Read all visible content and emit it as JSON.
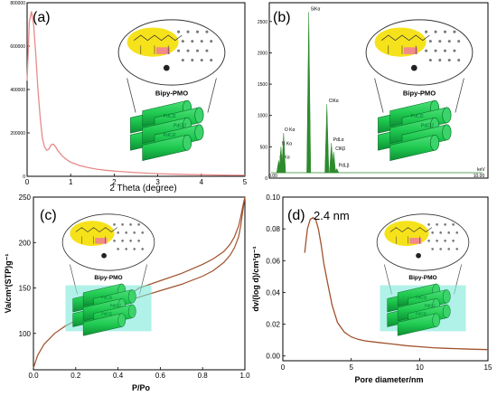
{
  "chart_data": [
    {
      "panel": "(a)",
      "type": "line",
      "xlabel": "2 Theta (degree)",
      "ylabel": "",
      "xlim": [
        0,
        5
      ],
      "ylim": [
        0,
        800000
      ],
      "xticks": [
        "0",
        "1",
        "2",
        "3",
        "4",
        "5"
      ],
      "yticks": [
        "0",
        "200000",
        "400000",
        "600000",
        "800000"
      ],
      "line_color": "#e88a8a",
      "inset_label": "Bipy-PMO",
      "inset_chem": [
        "PdCl2",
        "PdCl2",
        "PdCl2"
      ],
      "series": [
        {
          "x": [
            0.0,
            0.05,
            0.1,
            0.15,
            0.2,
            0.25,
            0.3,
            0.35,
            0.4,
            0.45,
            0.5,
            0.55,
            0.6,
            0.65,
            0.7,
            0.8,
            0.9,
            1.0,
            1.2,
            1.4,
            1.6,
            1.8,
            2.0,
            2.5,
            3.0,
            3.5,
            4.0,
            4.5,
            5.0
          ],
          "y": [
            440000,
            710000,
            760000,
            700000,
            560000,
            400000,
            270000,
            175000,
            135000,
            120000,
            125000,
            145000,
            148000,
            138000,
            120000,
            95000,
            78000,
            65000,
            50000,
            40000,
            33000,
            28000,
            24000,
            17000,
            12000,
            9000,
            7000,
            5500,
            4500
          ]
        }
      ]
    },
    {
      "panel": "(b)",
      "type": "bar",
      "xlabel": "",
      "ylabel": "",
      "x_unit": "keV",
      "xlim": [
        0,
        10
      ],
      "ylim": [
        0,
        2800
      ],
      "xticks": [
        "0.00",
        "10.00"
      ],
      "yticks": [
        "0",
        "500",
        "1000",
        "1500",
        "2000",
        "2500"
      ],
      "line_color": "#2d8a2d",
      "peaks": [
        {
          "label": "C Kα",
          "x": 0.28,
          "y": 280
        },
        {
          "label": "N Kα",
          "x": 0.39,
          "y": 500
        },
        {
          "label": "O Kα",
          "x": 0.52,
          "y": 720
        },
        {
          "label": "SiKα",
          "x": 1.74,
          "y": 2650
        },
        {
          "label": "ClKα",
          "x": 2.62,
          "y": 1180
        },
        {
          "label": "PdLα",
          "x": 2.84,
          "y": 560
        },
        {
          "label": "ClKβ",
          "x": 2.95,
          "y": 420
        },
        {
          "label": "PdLβ",
          "x": 3.1,
          "y": 150
        }
      ],
      "inset_label": "Bipy-PMO",
      "inset_chem": [
        "PdCl2",
        "PdCl2"
      ]
    },
    {
      "panel": "(c)",
      "type": "line",
      "xlabel": "P/Po",
      "ylabel": "Va/cm³(STP)g⁻¹",
      "xlim": [
        0,
        1.0
      ],
      "ylim": [
        60,
        250
      ],
      "xticks": [
        "0.0",
        "0.2",
        "0.4",
        "0.6",
        "0.8",
        "1.0"
      ],
      "yticks": [
        "100",
        "150",
        "200",
        "250"
      ],
      "line_color": "#a0522d",
      "inset_label": "Bipy-PMO",
      "inset_chem": [
        "PdCl2",
        "PdCl2",
        "PdCl2"
      ],
      "series": [
        {
          "x": [
            0.0,
            0.02,
            0.05,
            0.1,
            0.15,
            0.2,
            0.3,
            0.4,
            0.5,
            0.6,
            0.7,
            0.8,
            0.85,
            0.9,
            0.93,
            0.95,
            0.97,
            0.98,
            0.99,
            1.0
          ],
          "y": [
            62,
            76,
            88,
            100,
            108,
            114,
            124,
            132,
            140,
            147,
            154,
            163,
            169,
            178,
            186,
            194,
            206,
            218,
            235,
            250
          ]
        },
        {
          "x": [
            1.0,
            0.99,
            0.98,
            0.97,
            0.95,
            0.93,
            0.9,
            0.85,
            0.8,
            0.7,
            0.6,
            0.5,
            0.45,
            0.42
          ],
          "y": [
            250,
            240,
            228,
            218,
            206,
            198,
            190,
            182,
            176,
            166,
            158,
            150,
            142,
            137
          ]
        }
      ]
    },
    {
      "panel": "(d)",
      "type": "line",
      "xlabel": "Pore diameter/nm",
      "ylabel": "dv/(log d)/cm³g⁻¹",
      "xlim": [
        0,
        15
      ],
      "ylim": [
        -0.003,
        0.1
      ],
      "xticks": [
        "0",
        "5",
        "10",
        "15"
      ],
      "yticks": [
        "0.00",
        "0.02",
        "0.04",
        "0.06",
        "0.08",
        "0.10"
      ],
      "annotation": "2.4 nm",
      "line_color": "#a0522d",
      "inset_label": "Bipy-PMO",
      "inset_chem": [
        "PdCl2",
        "PdCl2",
        "PdCl2"
      ],
      "series": [
        {
          "x": [
            1.6,
            1.8,
            2.0,
            2.2,
            2.4,
            2.6,
            2.8,
            3.0,
            3.3,
            3.6,
            4.0,
            4.5,
            5.0,
            5.5,
            6,
            7,
            8,
            9,
            10,
            11,
            12,
            13,
            14,
            15
          ],
          "y": [
            0.065,
            0.08,
            0.086,
            0.087,
            0.086,
            0.08,
            0.07,
            0.058,
            0.045,
            0.032,
            0.021,
            0.015,
            0.012,
            0.0105,
            0.0095,
            0.0085,
            0.0075,
            0.0065,
            0.0058,
            0.0052,
            0.0048,
            0.0045,
            0.0042,
            0.004
          ]
        }
      ]
    }
  ]
}
